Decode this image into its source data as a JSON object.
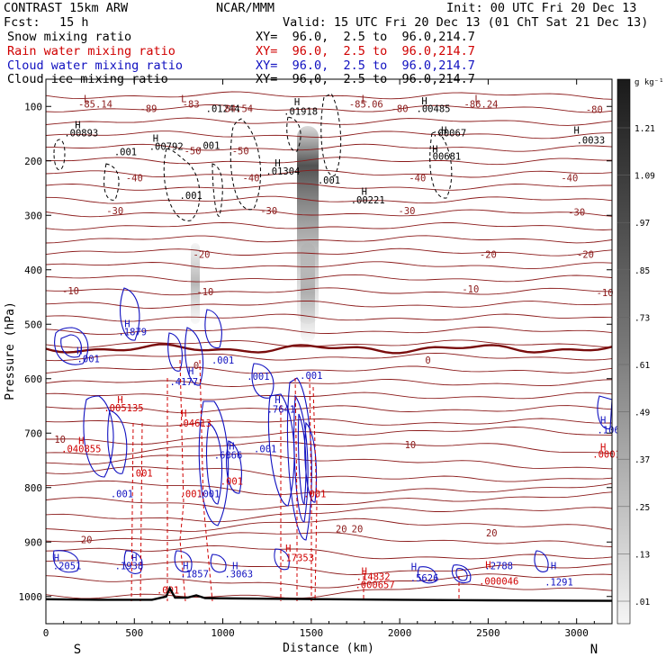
{
  "header": {
    "model": "CONTRAST 15km ARW",
    "org": "NCAR/MMM",
    "init": "Init: 00 UTC Fri 20 Dec 13",
    "fcst_label": "Fcst:",
    "fcst_value": "15 h",
    "valid": "Valid: 15 UTC Fri 20 Dec 13 (01 ChT Sat 21 Dec 13)"
  },
  "legend": [
    {
      "name": "Snow mixing ratio",
      "xy": "XY=  96.0,  2.5 to  96.0,214.7",
      "color": "#000000"
    },
    {
      "name": "Rain water mixing ratio",
      "xy": "XY=  96.0,  2.5 to  96.0,214.7",
      "color": "#d00000"
    },
    {
      "name": "Cloud water mixing ratio",
      "xy": "XY=  96.0,  2.5 to  96.0,214.7",
      "color": "#1010c0"
    },
    {
      "name": "Cloud ice mixing ratio",
      "xy": "XY=  96.0,  2.5 to  96.0,214.7",
      "color": "#000000"
    }
  ],
  "chart_data": {
    "type": "contour",
    "xlabel": "Distance (km)",
    "ylabel": "Pressure (hPa)",
    "xlim": [
      0,
      3200
    ],
    "ylim": [
      1050,
      50
    ],
    "x_ticks": [
      0,
      500,
      1000,
      1500,
      2000,
      2500,
      3000
    ],
    "y_ticks": [
      100,
      200,
      300,
      400,
      500,
      600,
      700,
      800,
      900,
      1000
    ],
    "x_ends": {
      "left": "S",
      "right": "N"
    },
    "colorbar": {
      "unit": "g kg⁻¹",
      "labels": [
        "1.21",
        "1.09",
        ".97",
        ".85",
        ".73",
        ".61",
        ".49",
        ".37",
        ".25",
        ".13",
        ".01"
      ]
    },
    "temperature_isotherms": [
      {
        "label": "-80",
        "p": 140
      },
      {
        "label": "-50",
        "p": 185
      },
      {
        "label": "-40",
        "p": 248
      },
      {
        "label": "-30",
        "p": 295
      },
      {
        "label": "-20",
        "p": 375
      },
      {
        "label": "-10",
        "p": 440
      },
      {
        "label": "0",
        "p": 545
      },
      {
        "label": "10",
        "p": 720
      },
      {
        "label": "20",
        "p": 860
      }
    ],
    "surface_pressure": [
      [
        0,
        1005
      ],
      [
        300,
        1006
      ],
      [
        600,
        1006
      ],
      [
        680,
        1000
      ],
      [
        700,
        985
      ],
      [
        730,
        1002
      ],
      [
        800,
        1002
      ],
      [
        850,
        998
      ],
      [
        900,
        1003
      ],
      [
        1200,
        1004
      ],
      [
        1600,
        1005
      ],
      [
        2000,
        1006
      ],
      [
        2500,
        1007
      ],
      [
        3200,
        1008
      ]
    ],
    "annotations": [
      {
        "text": "L",
        "x": 230,
        "p": 92,
        "color": "#8b1a1a"
      },
      {
        "text": "-85.14",
        "x": 280,
        "p": 102,
        "color": "#8b1a1a"
      },
      {
        "text": "-89",
        "x": 580,
        "p": 110,
        "color": "#8b1a1a"
      },
      {
        "text": "L",
        "x": 780,
        "p": 92,
        "color": "#8b1a1a"
      },
      {
        "text": "-83",
        "x": 820,
        "p": 102,
        "color": "#8b1a1a"
      },
      {
        "text": ".01244",
        "x": 1000,
        "p": 110,
        "color": "#000000"
      },
      {
        "text": "84.54",
        "x": 1090,
        "p": 110,
        "color": "#8b1a1a"
      },
      {
        "text": "H",
        "x": 1420,
        "p": 98,
        "color": "#000000"
      },
      {
        "text": ".01918",
        "x": 1440,
        "p": 115,
        "color": "#000000"
      },
      {
        "text": "L",
        "x": 1800,
        "p": 92,
        "color": "#8b1a1a"
      },
      {
        "text": "-85.06",
        "x": 1810,
        "p": 102,
        "color": "#8b1a1a"
      },
      {
        "text": "-80",
        "x": 2000,
        "p": 110,
        "color": "#8b1a1a"
      },
      {
        "text": "H",
        "x": 2140,
        "p": 96,
        "color": "#000000"
      },
      {
        "text": ".00485",
        "x": 2190,
        "p": 110,
        "color": "#000000"
      },
      {
        "text": "L",
        "x": 2440,
        "p": 92,
        "color": "#8b1a1a"
      },
      {
        "text": "-86.24",
        "x": 2460,
        "p": 102,
        "color": "#8b1a1a"
      },
      {
        "text": "-80",
        "x": 3100,
        "p": 112,
        "color": "#8b1a1a"
      },
      {
        "text": "H",
        "x": 180,
        "p": 140,
        "color": "#000000"
      },
      {
        "text": ".00893",
        "x": 200,
        "p": 155,
        "color": "#000000"
      },
      {
        "text": "H",
        "x": 620,
        "p": 165,
        "color": "#000000"
      },
      {
        "text": ".00792",
        "x": 680,
        "p": 180,
        "color": "#000000"
      },
      {
        "text": ".001",
        "x": 450,
        "p": 190,
        "color": "#000000"
      },
      {
        "text": ".001",
        "x": 920,
        "p": 178,
        "color": "#000000"
      },
      {
        "text": "-50",
        "x": 830,
        "p": 188,
        "color": "#8b1a1a"
      },
      {
        "text": "-50",
        "x": 1100,
        "p": 188,
        "color": "#8b1a1a"
      },
      {
        "text": "H",
        "x": 2250,
        "p": 150,
        "color": "#000000"
      },
      {
        "text": ".00067",
        "x": 2280,
        "p": 155,
        "color": "#000000"
      },
      {
        "text": "H",
        "x": 3000,
        "p": 150,
        "color": "#000000"
      },
      {
        "text": ".0033",
        "x": 3080,
        "p": 168,
        "color": "#000000"
      },
      {
        "text": "H",
        "x": 1310,
        "p": 210,
        "color": "#000000"
      },
      {
        "text": ".01304",
        "x": 1340,
        "p": 225,
        "color": "#000000"
      },
      {
        "text": "H",
        "x": 2200,
        "p": 185,
        "color": "#000000"
      },
      {
        "text": ".00681",
        "x": 2250,
        "p": 198,
        "color": "#000000"
      },
      {
        "text": "-40",
        "x": 500,
        "p": 238,
        "color": "#8b1a1a"
      },
      {
        "text": "-40",
        "x": 1160,
        "p": 238,
        "color": "#8b1a1a"
      },
      {
        "text": ".001",
        "x": 1600,
        "p": 242,
        "color": "#000000"
      },
      {
        "text": "-40",
        "x": 2100,
        "p": 238,
        "color": "#8b1a1a"
      },
      {
        "text": "-40",
        "x": 2960,
        "p": 238,
        "color": "#8b1a1a"
      },
      {
        "text": "H",
        "x": 1800,
        "p": 262,
        "color": "#000000"
      },
      {
        "text": ".00221",
        "x": 1820,
        "p": 278,
        "color": "#000000"
      },
      {
        "text": ".001",
        "x": 820,
        "p": 270,
        "color": "#000000"
      },
      {
        "text": "-30",
        "x": 390,
        "p": 298,
        "color": "#8b1a1a"
      },
      {
        "text": "-30",
        "x": 1260,
        "p": 298,
        "color": "#8b1a1a"
      },
      {
        "text": "-30",
        "x": 2040,
        "p": 298,
        "color": "#8b1a1a"
      },
      {
        "text": "-30",
        "x": 3000,
        "p": 300,
        "color": "#8b1a1a"
      },
      {
        "text": "-20",
        "x": 880,
        "p": 378,
        "color": "#8b1a1a"
      },
      {
        "text": "-20",
        "x": 2500,
        "p": 378,
        "color": "#8b1a1a"
      },
      {
        "text": "-20",
        "x": 3050,
        "p": 378,
        "color": "#8b1a1a"
      },
      {
        "text": "-10",
        "x": 140,
        "p": 445,
        "color": "#8b1a1a"
      },
      {
        "text": "-10",
        "x": 900,
        "p": 447,
        "color": "#8b1a1a"
      },
      {
        "text": "-10",
        "x": 2400,
        "p": 442,
        "color": "#8b1a1a"
      },
      {
        "text": "-10",
        "x": 3160,
        "p": 448,
        "color": "#8b1a1a"
      },
      {
        "text": "H",
        "x": 460,
        "p": 505,
        "color": "#1010c0"
      },
      {
        "text": ".1879",
        "x": 490,
        "p": 520,
        "color": "#1010c0"
      },
      {
        "text": "H",
        "x": 190,
        "p": 555,
        "color": "#1010c0"
      },
      {
        "text": ".001",
        "x": 240,
        "p": 570,
        "color": "#1010c0"
      },
      {
        "text": ".001",
        "x": 1000,
        "p": 572,
        "color": "#1010c0"
      },
      {
        "text": "0",
        "x": 850,
        "p": 582,
        "color": "#8b1a1a"
      },
      {
        "text": "0",
        "x": 2160,
        "p": 572,
        "color": "#8b1a1a"
      },
      {
        "text": "H",
        "x": 820,
        "p": 592,
        "color": "#1010c0"
      },
      {
        "text": ".4177",
        "x": 780,
        "p": 612,
        "color": "#1010c0"
      },
      {
        "text": ".001",
        "x": 1200,
        "p": 602,
        "color": "#1010c0"
      },
      {
        "text": ".001",
        "x": 1500,
        "p": 600,
        "color": "#1010c0"
      },
      {
        "text": "H",
        "x": 420,
        "p": 645,
        "color": "#d00000"
      },
      {
        "text": ".005135",
        "x": 440,
        "p": 660,
        "color": "#d00000"
      },
      {
        "text": "H",
        "x": 1310,
        "p": 645,
        "color": "#1010c0"
      },
      {
        "text": ".7641",
        "x": 1330,
        "p": 662,
        "color": "#1010c0"
      },
      {
        "text": "H",
        "x": 780,
        "p": 670,
        "color": "#d00000"
      },
      {
        "text": ".04613",
        "x": 840,
        "p": 688,
        "color": "#d00000"
      },
      {
        "text": "10",
        "x": 80,
        "p": 718,
        "color": "#8b1a1a"
      },
      {
        "text": "10",
        "x": 2060,
        "p": 728,
        "color": "#8b1a1a"
      },
      {
        "text": "H",
        "x": 3150,
        "p": 682,
        "color": "#1010c0"
      },
      {
        "text": ".106",
        "x": 3180,
        "p": 700,
        "color": "#1010c0"
      },
      {
        "text": "H",
        "x": 200,
        "p": 720,
        "color": "#d00000"
      },
      {
        "text": ".040855",
        "x": 200,
        "p": 735,
        "color": "#d00000"
      },
      {
        "text": "H",
        "x": 1050,
        "p": 730,
        "color": "#1010c0"
      },
      {
        "text": ".6866",
        "x": 1030,
        "p": 747,
        "color": "#1010c0"
      },
      {
        "text": ".001",
        "x": 1240,
        "p": 735,
        "color": "#1010c0"
      },
      {
        "text": "H",
        "x": 3150,
        "p": 732,
        "color": "#d00000"
      },
      {
        "text": ".0001",
        "x": 3170,
        "p": 745,
        "color": "#d00000"
      },
      {
        "text": ".001",
        "x": 540,
        "p": 780,
        "color": "#d00000"
      },
      {
        "text": ".001",
        "x": 1050,
        "p": 795,
        "color": "#d00000"
      },
      {
        "text": ".001",
        "x": 430,
        "p": 818,
        "color": "#1010c0"
      },
      {
        "text": ".001",
        "x": 820,
        "p": 818,
        "color": "#d00000"
      },
      {
        "text": ".001",
        "x": 920,
        "p": 818,
        "color": "#1010c0"
      },
      {
        "text": ".001",
        "x": 1520,
        "p": 818,
        "color": "#d00000"
      },
      {
        "text": "20",
        "x": 1670,
        "p": 882,
        "color": "#8b1a1a"
      },
      {
        "text": "20",
        "x": 1760,
        "p": 882,
        "color": "#8b1a1a"
      },
      {
        "text": "20",
        "x": 2520,
        "p": 890,
        "color": "#8b1a1a"
      },
      {
        "text": "20",
        "x": 230,
        "p": 902,
        "color": "#8b1a1a"
      },
      {
        "text": "H",
        "x": 60,
        "p": 935,
        "color": "#1010c0"
      },
      {
        "text": ".2051",
        "x": 120,
        "p": 950,
        "color": "#1010c0"
      },
      {
        "text": "H",
        "x": 500,
        "p": 935,
        "color": "#1010c0"
      },
      {
        "text": ".1938",
        "x": 470,
        "p": 950,
        "color": "#1010c0"
      },
      {
        "text": "H",
        "x": 1370,
        "p": 918,
        "color": "#d00000"
      },
      {
        "text": ".17353",
        "x": 1420,
        "p": 935,
        "color": "#d00000"
      },
      {
        "text": "H",
        "x": 790,
        "p": 950,
        "color": "#1010c0"
      },
      {
        "text": ".1857",
        "x": 840,
        "p": 965,
        "color": "#1010c0"
      },
      {
        "text": "H",
        "x": 1070,
        "p": 950,
        "color": "#1010c0"
      },
      {
        "text": ".3063",
        "x": 1090,
        "p": 965,
        "color": "#1010c0"
      },
      {
        "text": "H",
        "x": 1800,
        "p": 960,
        "color": "#d00000"
      },
      {
        "text": ".14832",
        "x": 1850,
        "p": 970,
        "color": "#d00000"
      },
      {
        "text": "H",
        "x": 2080,
        "p": 952,
        "color": "#1010c0"
      },
      {
        "text": ".5626",
        "x": 2140,
        "p": 972,
        "color": "#1010c0"
      },
      {
        "text": "H",
        "x": 2500,
        "p": 948,
        "color": "#d00000"
      },
      {
        "text": ".2788",
        "x": 2560,
        "p": 950,
        "color": "#1010c0"
      },
      {
        "text": ".000046",
        "x": 2560,
        "p": 978,
        "color": "#d00000"
      },
      {
        "text": "H",
        "x": 2870,
        "p": 950,
        "color": "#1010c0"
      },
      {
        "text": ".1291",
        "x": 2900,
        "p": 980,
        "color": "#1010c0"
      },
      {
        "text": ".000657",
        "x": 1860,
        "p": 985,
        "color": "#d00000"
      },
      {
        "text": ".001",
        "x": 690,
        "p": 995,
        "color": "#d00000"
      }
    ]
  }
}
